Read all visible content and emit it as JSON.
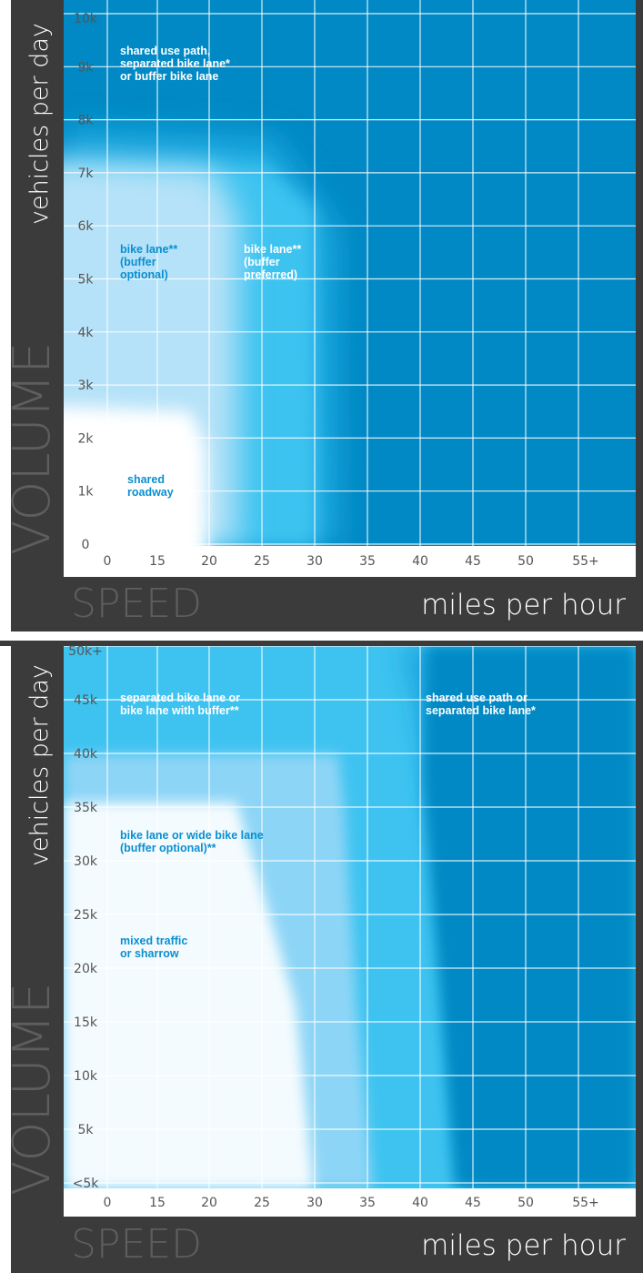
{
  "chart_data": [
    {
      "type": "heatmap",
      "xlabel": "SPEED",
      "xunit": "miles per hour",
      "ylabel": "VOLUME",
      "yunit": "vehicles per day",
      "x_ticks": [
        "0",
        "15",
        "20",
        "25",
        "30",
        "35",
        "40",
        "45",
        "50",
        "55+"
      ],
      "y_ticks": [
        "0",
        "1k",
        "2k",
        "3k",
        "4k",
        "5k",
        "6k",
        "7k",
        "8k",
        "9k",
        "10k"
      ],
      "grid": true,
      "zones": [
        {
          "label_lines": [
            "shared use path,",
            "separated bike lane*",
            "or buffer bike lane"
          ],
          "color": "#0089c4"
        },
        {
          "label_lines": [
            "bike lane**",
            "(buffer",
            "optional)"
          ],
          "color": "#b5e2f8"
        },
        {
          "label_lines": [
            "bike lane**",
            "(buffer",
            "preferred)"
          ],
          "color": "#3ec3f0"
        },
        {
          "label_lines": [
            "shared",
            "roadway"
          ],
          "color": "#ffffff"
        }
      ]
    },
    {
      "type": "heatmap",
      "xlabel": "SPEED",
      "xunit": "miles per hour",
      "ylabel": "VOLUME",
      "yunit": "vehicles per day",
      "x_ticks": [
        "0",
        "15",
        "20",
        "25",
        "30",
        "35",
        "40",
        "45",
        "50",
        "55+"
      ],
      "y_ticks": [
        "<5k",
        "5k",
        "10k",
        "15k",
        "20k",
        "25k",
        "30k",
        "35k",
        "40k",
        "45k",
        "50k+"
      ],
      "grid": true,
      "zones": [
        {
          "label_lines": [
            "separated bike lane or",
            "bike lane with buffer**"
          ],
          "color": "#3ec3f0"
        },
        {
          "label_lines": [
            "shared use path or",
            "separated bike lane*"
          ],
          "color": "#0089c4"
        },
        {
          "label_lines": [
            "bike lane or wide bike lane",
            "(buffer optional)**"
          ],
          "color": "#8dd5f6"
        },
        {
          "label_lines": [
            "mixed traffic",
            "or sharrow"
          ],
          "color": "#f4fbfe"
        }
      ]
    }
  ]
}
